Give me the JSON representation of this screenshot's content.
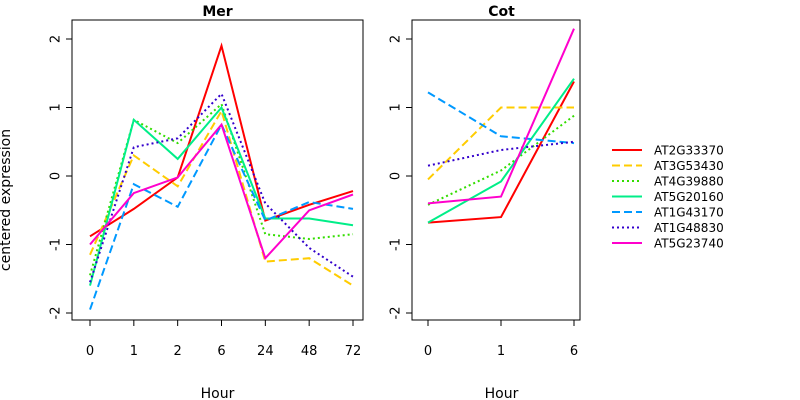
{
  "chart_data": [
    {
      "type": "line",
      "title": "Mer",
      "xlabel": "Hour",
      "ylabel": "centered expression",
      "categories": [
        "0",
        "1",
        "2",
        "6",
        "24",
        "48",
        "72"
      ],
      "ylim": [
        -2.2,
        2.2
      ],
      "yticks": [
        "-2",
        "-1",
        "0",
        "1",
        "2"
      ],
      "series": [
        {
          "name": "AT2G33370",
          "values": [
            -0.88,
            -0.48,
            -0.02,
            1.9,
            -0.65,
            -0.42,
            -0.22
          ]
        },
        {
          "name": "AT3G53430",
          "values": [
            -1.15,
            0.3,
            -0.15,
            0.95,
            -1.25,
            -1.2,
            -1.6
          ]
        },
        {
          "name": "AT4G39880",
          "values": [
            -1.45,
            0.82,
            0.48,
            1.05,
            -0.85,
            -0.92,
            -0.85
          ]
        },
        {
          "name": "AT5G20160",
          "values": [
            -1.6,
            0.82,
            0.25,
            1.0,
            -0.62,
            -0.62,
            -0.72
          ]
        },
        {
          "name": "AT1G43170",
          "values": [
            -1.95,
            -0.12,
            -0.45,
            0.75,
            -0.65,
            -0.38,
            -0.48
          ]
        },
        {
          "name": "AT1G48830",
          "values": [
            -1.55,
            0.42,
            0.55,
            1.2,
            -0.4,
            -1.05,
            -1.47
          ]
        },
        {
          "name": "AT5G23740",
          "values": [
            -1.0,
            -0.25,
            -0.02,
            0.75,
            -1.2,
            -0.5,
            -0.27
          ]
        }
      ]
    },
    {
      "type": "line",
      "title": "Cot",
      "xlabel": "Hour",
      "ylabel": "",
      "categories": [
        "0",
        "1",
        "6"
      ],
      "ylim": [
        -2.2,
        2.2
      ],
      "yticks": [
        "-2",
        "-1",
        "0",
        "1",
        "2"
      ],
      "series": [
        {
          "name": "AT2G33370",
          "values": [
            -0.68,
            -0.6,
            1.38
          ]
        },
        {
          "name": "AT3G53430",
          "values": [
            -0.05,
            1.0,
            1.0
          ]
        },
        {
          "name": "AT4G39880",
          "values": [
            -0.42,
            0.08,
            0.88
          ]
        },
        {
          "name": "AT5G20160",
          "values": [
            -0.68,
            -0.08,
            1.42
          ]
        },
        {
          "name": "AT1G43170",
          "values": [
            1.22,
            0.58,
            0.48
          ]
        },
        {
          "name": "AT1G48830",
          "values": [
            0.15,
            0.38,
            0.5
          ]
        },
        {
          "name": "AT5G23740",
          "values": [
            -0.4,
            -0.3,
            2.15
          ]
        }
      ]
    }
  ],
  "legend": {
    "placement": "right",
    "items": [
      {
        "label": "AT2G33370",
        "color": "#ff0000",
        "dash": "solid"
      },
      {
        "label": "AT3G53430",
        "color": "#ffcc00",
        "dash": "dashed"
      },
      {
        "label": "AT4G39880",
        "color": "#33dd00",
        "dash": "dotted"
      },
      {
        "label": "AT5G20160",
        "color": "#00ee88",
        "dash": "solid"
      },
      {
        "label": "AT1G43170",
        "color": "#0099ff",
        "dash": "dashed"
      },
      {
        "label": "AT1G48830",
        "color": "#3300cc",
        "dash": "dotted"
      },
      {
        "label": "AT5G23740",
        "color": "#ff00cc",
        "dash": "solid"
      }
    ]
  }
}
